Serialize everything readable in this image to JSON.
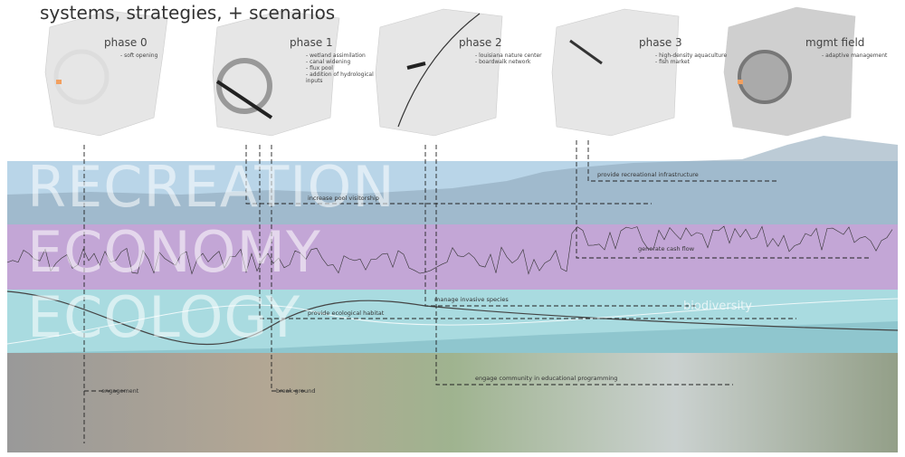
{
  "header": {
    "title": "systems, strategies, + scenarios"
  },
  "phases": [
    {
      "label": "phase 0",
      "notes": [
        "- soft opening"
      ]
    },
    {
      "label": "phase 1",
      "notes": [
        "- wetland assimilation",
        "- canal widening",
        "- flux pool",
        "- addition of hydrological inputs"
      ]
    },
    {
      "label": "phase 2",
      "notes": [
        "- louisiana nature center",
        "- boardwalk network"
      ]
    },
    {
      "label": "phase 3",
      "notes": [
        "- high-density aquaculture",
        "- fish market"
      ]
    },
    {
      "label": "mgmt field",
      "notes": [
        "- adaptive management"
      ]
    }
  ],
  "bands": [
    "RECREATION",
    "ECONOMY",
    "ECOLOGY"
  ],
  "strategies": [
    "provide recreational infrastructure",
    "increase pool visitorship",
    "generate cash flow",
    "manage invasive species",
    "provide ecological habitat",
    "biodiversity",
    "engage community in educational programming",
    "break ground",
    "engagement"
  ]
}
